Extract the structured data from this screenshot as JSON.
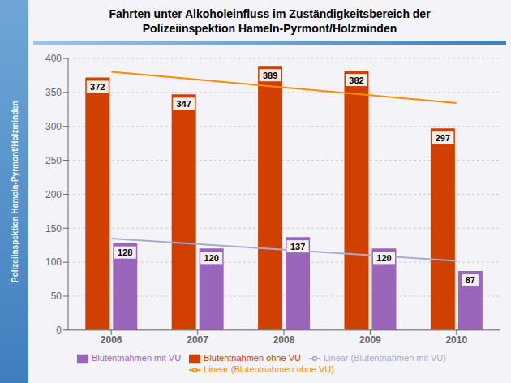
{
  "chart_data": {
    "type": "bar",
    "title": "Fahrten unter Alkoholeinfluss im Zuständigkeitsbereich der\nPolizeiinspektion Hameln-Pyrmont/Holzminden",
    "annotations": [
      "Polizeiinspektion Hameln-Pyrmont/Holzminden"
    ],
    "categories": [
      "2006",
      "2007",
      "2008",
      "2009",
      "2010"
    ],
    "series": [
      {
        "name": "Blutentnahmen ohne VU",
        "type": "bar",
        "color": "#D04000",
        "values": [
          372,
          347,
          389,
          382,
          297
        ]
      },
      {
        "name": "Blutentnahmen mit VU",
        "type": "bar",
        "color": "#9966BB",
        "values": [
          128,
          120,
          137,
          120,
          87
        ]
      },
      {
        "name": "Linear (Blutentnahmen ohne VU)",
        "type": "line",
        "color": "#FF8C00",
        "marker": "none",
        "values": [
          380.4,
          368.9,
          357.4,
          345.9,
          334.4
        ]
      },
      {
        "name": "Linear (Blutentnahmen mit VU)",
        "type": "line",
        "color": "#AAAACC",
        "marker": "none",
        "values": [
          134.8,
          126.6,
          118.4,
          110.2,
          102.0
        ]
      }
    ],
    "ylim": [
      0,
      400
    ],
    "yticks": [
      0,
      50,
      100,
      150,
      200,
      250,
      300,
      350,
      400
    ],
    "grid": true,
    "data_labels": true
  }
}
